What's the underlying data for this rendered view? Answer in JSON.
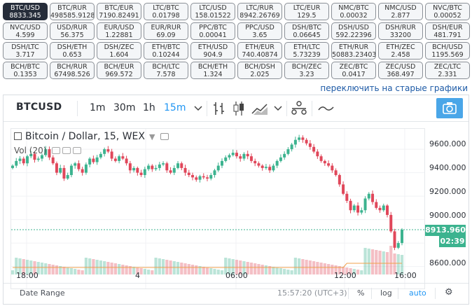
{
  "tickers": [
    {
      "pair": "BTC/USD",
      "price": "8833.345",
      "active": true
    },
    {
      "pair": "BTC/RUR",
      "price": "498585.9128"
    },
    {
      "pair": "BTC/EUR",
      "price": "7190.82491"
    },
    {
      "pair": "LTC/BTC",
      "price": "0.01798"
    },
    {
      "pair": "LTC/USD",
      "price": "158.01522"
    },
    {
      "pair": "LTC/RUR",
      "price": "8942.26769"
    },
    {
      "pair": "LTC/EUR",
      "price": "129.5"
    },
    {
      "pair": "NMC/BTC",
      "price": "0.00032"
    },
    {
      "pair": "NMC/USD",
      "price": "2.877"
    },
    {
      "pair": "NVC/BTC",
      "price": "0.00052"
    },
    {
      "pair": "NVC/USD",
      "price": "4.599"
    },
    {
      "pair": "USD/RUR",
      "price": "56.375"
    },
    {
      "pair": "EUR/USD",
      "price": "1.22881"
    },
    {
      "pair": "EUR/RUR",
      "price": "69.09"
    },
    {
      "pair": "PPC/BTC",
      "price": "0.00041"
    },
    {
      "pair": "PPC/USD",
      "price": "3.65"
    },
    {
      "pair": "DSH/BTC",
      "price": "0.06645"
    },
    {
      "pair": "DSH/USD",
      "price": "592.22396"
    },
    {
      "pair": "DSH/RUR",
      "price": "33200"
    },
    {
      "pair": "DSH/EUR",
      "price": "481.791"
    },
    {
      "pair": "DSH/LTC",
      "price": "3.717"
    },
    {
      "pair": "DSH/ETH",
      "price": "0.653"
    },
    {
      "pair": "DSH/ZEC",
      "price": "1.604"
    },
    {
      "pair": "ETH/BTC",
      "price": "0.10244"
    },
    {
      "pair": "ETH/USD",
      "price": "904.9"
    },
    {
      "pair": "ETH/EUR",
      "price": "740.40874"
    },
    {
      "pair": "ETH/LTC",
      "price": "5.73239"
    },
    {
      "pair": "ETH/RUR",
      "price": "50883.23403"
    },
    {
      "pair": "ETH/ZEC",
      "price": "2.458"
    },
    {
      "pair": "BCH/USD",
      "price": "1195.569"
    },
    {
      "pair": "BCH/BTC",
      "price": "0.1353"
    },
    {
      "pair": "BCH/RUR",
      "price": "67498.526"
    },
    {
      "pair": "BCH/EUR",
      "price": "969.572"
    },
    {
      "pair": "BCH/LTC",
      "price": "7.578"
    },
    {
      "pair": "BCH/ETH",
      "price": "1.324"
    },
    {
      "pair": "BCH/DSH",
      "price": "2.025"
    },
    {
      "pair": "BCH/ZEC",
      "price": "3.23"
    },
    {
      "pair": "ZEC/BTC",
      "price": "0.0417"
    },
    {
      "pair": "ZEC/USD",
      "price": "368.497"
    },
    {
      "pair": "ZEC/LTC",
      "price": "2.331"
    }
  ],
  "switch_link": "переключить на старые графики",
  "toolbar": {
    "symbol": "BTCUSD",
    "intervals": [
      "1m",
      "30m",
      "1h",
      "15m"
    ],
    "selected_interval": "15m"
  },
  "legend": {
    "title": "Bitcoin / Dollar, 15, WEX",
    "volume_label": "Vol (20)"
  },
  "colors": {
    "up": "#3cb38f",
    "down": "#e0475a",
    "accent": "#2196f3",
    "active_ticker": "#262d3a",
    "ma_line": "#f0a04b"
  },
  "price_axis": [
    "9600.000",
    "9400.000",
    "9200.000",
    "9000.000",
    "8800.000",
    "8600.000"
  ],
  "last_price": "8913.960",
  "countdown": "02:39",
  "time_axis": [
    "18:00",
    "4",
    "06:00",
    "12:00",
    "16:00"
  ],
  "footer": {
    "date_range": "Date Range",
    "clock": "15:57:20 (UTC+3)",
    "percent": "%",
    "log": "log",
    "auto": "auto"
  },
  "chart_data": {
    "type": "candlestick",
    "symbol": "BTCUSD",
    "interval": "15",
    "exchange": "WEX",
    "ylim": [
      8550,
      9750
    ],
    "x_ticks": [
      "18:00",
      "4",
      "06:00",
      "12:00",
      "16:00"
    ],
    "y_ticks": [
      8600,
      8800,
      9000,
      9200,
      9400,
      9600
    ],
    "last_price": 8913.96,
    "closes": [
      9460,
      9500,
      9520,
      9480,
      9540,
      9560,
      9510,
      9520,
      9550,
      9600,
      9530,
      9480,
      9400,
      9440,
      9350,
      9380,
      9460,
      9480,
      9430,
      9400,
      9470,
      9520,
      9490,
      9530,
      9560,
      9600,
      9580,
      9520,
      9500,
      9540,
      9520,
      9480,
      9420,
      9440,
      9400,
      9380,
      9430,
      9460,
      9430,
      9440,
      9470,
      9480,
      9420,
      9400,
      9440,
      9480,
      9440,
      9400,
      9380,
      9360,
      9340,
      9370,
      9360,
      9350,
      9380,
      9420,
      9460,
      9500,
      9530,
      9550,
      9570,
      9540,
      9520,
      9560,
      9540,
      9500,
      9480,
      9460,
      9440,
      9450,
      9420,
      9460,
      9500,
      9530,
      9560,
      9600,
      9640,
      9680,
      9700,
      9680,
      9650,
      9620,
      9580,
      9540,
      9500,
      9480,
      9460,
      9420,
      9380,
      9300,
      9220,
      9160,
      9080,
      9120,
      9060,
      9080,
      9180,
      9220,
      9150,
      9100,
      9080,
      9120,
      9040,
      8900,
      8760,
      8800,
      8913.96
    ],
    "ma_overlay": true,
    "volume": true
  }
}
